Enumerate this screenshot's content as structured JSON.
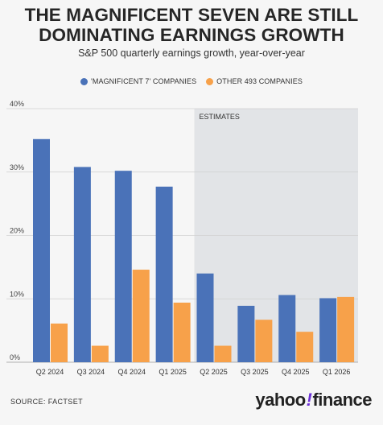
{
  "title_lines": [
    "THE MAGNIFICENT SEVEN ARE STILL",
    "DOMINATING EARNINGS GROWTH"
  ],
  "subtitle": "S&P 500 quarterly earnings growth, year-over-year",
  "legend": [
    {
      "label": "'MAGNIFICENT 7' COMPANIES",
      "color": "#4a72b8"
    },
    {
      "label": "OTHER 493 COMPANIES",
      "color": "#f7a14a"
    }
  ],
  "source": "SOURCE: FACTSET",
  "logo": {
    "word1": "yahoo",
    "bang": "!",
    "word2": "finance"
  },
  "chart_data": {
    "type": "bar",
    "categories": [
      "Q2 2024",
      "Q3 2024",
      "Q4 2024",
      "Q1 2025",
      "Q2 2025",
      "Q3 2025",
      "Q4 2025",
      "Q1 2026"
    ],
    "series": [
      {
        "name": "'MAGNIFICENT 7' COMPANIES",
        "color": "#4a72b8",
        "values": [
          35.2,
          30.8,
          30.2,
          27.7,
          14.0,
          8.9,
          10.6,
          10.1
        ]
      },
      {
        "name": "OTHER 493 COMPANIES",
        "color": "#f7a14a",
        "values": [
          6.1,
          2.6,
          14.6,
          9.4,
          2.6,
          6.7,
          4.8,
          10.3
        ]
      }
    ],
    "ylim": [
      0,
      40
    ],
    "yticks": [
      0,
      10,
      20,
      30,
      40
    ],
    "ytick_labels": [
      "0%",
      "10%",
      "20%",
      "30%",
      "40%"
    ],
    "grid": true,
    "estimates_label": "ESTIMATES",
    "estimates_start_index": 4,
    "estimates_bg": "#e2e4e7"
  }
}
